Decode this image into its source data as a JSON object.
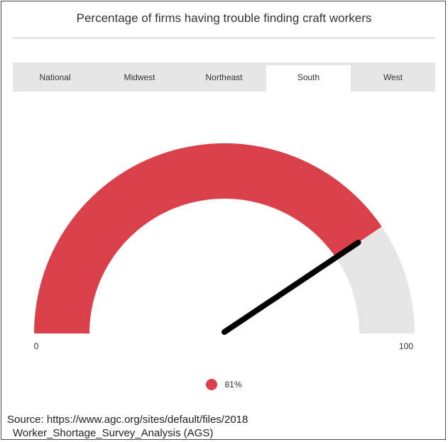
{
  "title": "Percentage of firms having trouble finding craft workers",
  "tabs": [
    {
      "label": "National",
      "active": false
    },
    {
      "label": "Midwest",
      "active": false
    },
    {
      "label": "Northeast",
      "active": false
    },
    {
      "label": "South",
      "active": true
    },
    {
      "label": "West",
      "active": false
    }
  ],
  "chart_data": {
    "type": "gauge",
    "value": 81,
    "min": 0,
    "max": 100,
    "min_label": "0",
    "max_label": "100",
    "value_label": "81%",
    "fill_color": "#d9404a",
    "track_color": "#e6e6e6",
    "needle_color": "#000000"
  },
  "source": {
    "line1": "Source: https://www.agc.org/sites/default/files/2018",
    "line2": "Worker_Shortage_Survey_Analysis (AGS)"
  }
}
